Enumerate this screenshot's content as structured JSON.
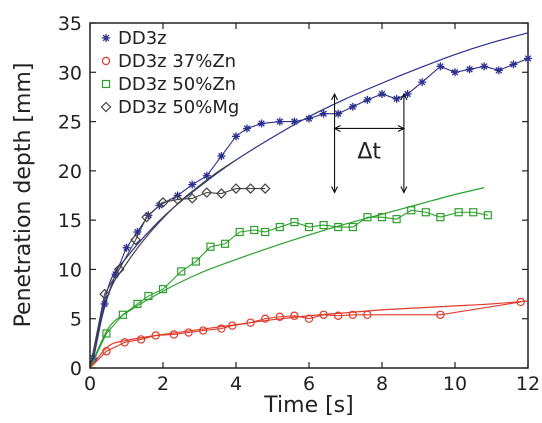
{
  "chart_data": {
    "type": "line",
    "title": "",
    "xlabel": "Time [s]",
    "ylabel": "Penetration depth [mm]",
    "xlim": [
      0,
      12
    ],
    "ylim": [
      0,
      35
    ],
    "xticks": [
      0,
      2,
      4,
      6,
      8,
      10,
      12
    ],
    "yticks": [
      0,
      5,
      10,
      15,
      20,
      25,
      30,
      35
    ],
    "grid": false,
    "legend_position": "top-left",
    "annotation": {
      "label": "Δt",
      "x_start": 6.7,
      "x_end": 8.6,
      "y": 24.3
    },
    "series": [
      {
        "name": "DD3z",
        "color": "#2b2f8f",
        "marker": "star",
        "points": [
          [
            0.1,
            1
          ],
          [
            0.4,
            6.5
          ],
          [
            0.7,
            9.5
          ],
          [
            1.0,
            12.2
          ],
          [
            1.3,
            13.8
          ],
          [
            1.6,
            15.5
          ],
          [
            1.9,
            16.5
          ],
          [
            2.4,
            17.5
          ],
          [
            2.8,
            18.6
          ],
          [
            3.2,
            19.5
          ],
          [
            3.6,
            21.5
          ],
          [
            4.0,
            23.5
          ],
          [
            4.3,
            24.3
          ],
          [
            4.7,
            24.8
          ],
          [
            5.2,
            25.0
          ],
          [
            5.6,
            25.0
          ],
          [
            6.0,
            25.3
          ],
          [
            6.4,
            25.8
          ],
          [
            6.8,
            25.8
          ],
          [
            7.2,
            26.5
          ],
          [
            7.6,
            27.2
          ],
          [
            8.0,
            27.8
          ],
          [
            8.4,
            27.3
          ],
          [
            8.7,
            27.8
          ],
          [
            9.1,
            29.0
          ],
          [
            9.6,
            30.6
          ],
          [
            10.0,
            30.0
          ],
          [
            10.4,
            30.3
          ],
          [
            10.8,
            30.6
          ],
          [
            11.2,
            30.2
          ],
          [
            11.6,
            30.8
          ],
          [
            12.0,
            31.4
          ]
        ],
        "fit": [
          [
            0,
            0
          ],
          [
            0.5,
            8.2
          ],
          [
            1,
            11.2
          ],
          [
            2,
            15.3
          ],
          [
            3,
            18.4
          ],
          [
            4,
            21.1
          ],
          [
            5,
            23.4
          ],
          [
            6,
            25.5
          ],
          [
            7,
            27.3
          ],
          [
            8,
            28.9
          ],
          [
            9,
            30.4
          ],
          [
            10,
            31.8
          ],
          [
            11,
            33.0
          ],
          [
            12,
            34.0
          ]
        ]
      },
      {
        "name": "DD3z 37%Zn",
        "color": "#e03a2a",
        "marker": "circle",
        "points": [
          [
            0.45,
            1.7
          ],
          [
            0.95,
            2.6
          ],
          [
            1.4,
            2.9
          ],
          [
            1.8,
            3.3
          ],
          [
            2.3,
            3.4
          ],
          [
            2.7,
            3.6
          ],
          [
            3.1,
            3.8
          ],
          [
            3.6,
            4.0
          ],
          [
            3.9,
            4.3
          ],
          [
            4.4,
            4.6
          ],
          [
            4.8,
            5.0
          ],
          [
            5.2,
            5.2
          ],
          [
            5.6,
            5.3
          ],
          [
            6.0,
            5.0
          ],
          [
            6.4,
            5.4
          ],
          [
            6.8,
            5.3
          ],
          [
            7.2,
            5.4
          ],
          [
            7.6,
            5.4
          ],
          [
            9.6,
            5.4
          ],
          [
            11.8,
            6.7
          ]
        ],
        "fit": [
          [
            0,
            0
          ],
          [
            0.5,
            2.2
          ],
          [
            1,
            2.8
          ],
          [
            2,
            3.4
          ],
          [
            3,
            3.9
          ],
          [
            4,
            4.4
          ],
          [
            5,
            4.9
          ],
          [
            6,
            5.3
          ],
          [
            7,
            5.6
          ],
          [
            8,
            5.9
          ],
          [
            9,
            6.1
          ],
          [
            10,
            6.3
          ],
          [
            11,
            6.5
          ],
          [
            12,
            6.8
          ]
        ]
      },
      {
        "name": "DD3z 50%Zn",
        "color": "#2aa02b",
        "marker": "square",
        "points": [
          [
            0.45,
            3.5
          ],
          [
            0.9,
            5.4
          ],
          [
            1.3,
            6.5
          ],
          [
            1.6,
            7.3
          ],
          [
            2.0,
            8.0
          ],
          [
            2.5,
            9.8
          ],
          [
            2.9,
            10.8
          ],
          [
            3.3,
            12.3
          ],
          [
            3.7,
            12.6
          ],
          [
            4.1,
            13.8
          ],
          [
            4.5,
            14.0
          ],
          [
            4.8,
            13.8
          ],
          [
            5.2,
            14.3
          ],
          [
            5.6,
            14.8
          ],
          [
            6.0,
            14.3
          ],
          [
            6.4,
            14.5
          ],
          [
            6.8,
            14.3
          ],
          [
            7.2,
            14.3
          ],
          [
            7.6,
            15.3
          ],
          [
            8.0,
            15.3
          ],
          [
            8.4,
            15.1
          ],
          [
            8.8,
            16.0
          ],
          [
            9.2,
            15.8
          ],
          [
            9.6,
            15.3
          ],
          [
            10.1,
            15.8
          ],
          [
            10.5,
            15.8
          ],
          [
            10.9,
            15.5
          ]
        ],
        "fit": [
          [
            0,
            0
          ],
          [
            0.5,
            4.0
          ],
          [
            1,
            5.6
          ],
          [
            2,
            7.8
          ],
          [
            3,
            9.6
          ],
          [
            4,
            11.0
          ],
          [
            5,
            12.3
          ],
          [
            6,
            13.5
          ],
          [
            7,
            14.6
          ],
          [
            8,
            15.6
          ],
          [
            9,
            16.6
          ],
          [
            10,
            17.6
          ],
          [
            10.8,
            18.3
          ]
        ]
      },
      {
        "name": "DD3z 50%Mg",
        "color": "#444444",
        "marker": "diamond",
        "points": [
          [
            0.4,
            7.5
          ],
          [
            0.8,
            10.0
          ],
          [
            1.25,
            13.0
          ],
          [
            1.55,
            15.3
          ],
          [
            2.0,
            16.8
          ],
          [
            2.4,
            17.1
          ],
          [
            2.8,
            17.2
          ],
          [
            3.2,
            17.8
          ],
          [
            3.6,
            17.7
          ],
          [
            4.0,
            18.2
          ],
          [
            4.4,
            18.2
          ],
          [
            4.8,
            18.2
          ]
        ],
        "fit": [
          [
            0,
            0
          ],
          [
            0.5,
            7.4
          ],
          [
            1,
            10.6
          ],
          [
            1.5,
            13.1
          ],
          [
            2,
            15.2
          ],
          [
            2.5,
            17.0
          ],
          [
            3,
            18.5
          ],
          [
            3.5,
            19.9
          ],
          [
            4,
            21.1
          ]
        ]
      }
    ]
  }
}
